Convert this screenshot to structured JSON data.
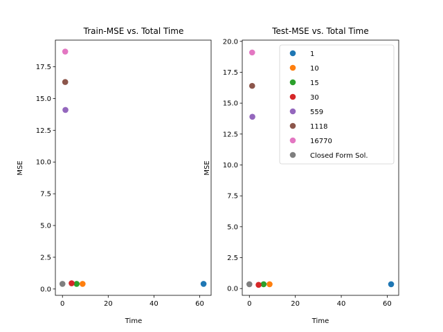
{
  "chart_data": [
    {
      "type": "scatter",
      "title": "Train-MSE vs. Total Time",
      "xlabel": "Time",
      "ylabel": "MSE",
      "xlim": [
        -3.1,
        65
      ],
      "ylim": [
        -0.5,
        19.6
      ],
      "xticks": [
        0,
        20,
        40,
        60
      ],
      "xtick_labels": [
        "0",
        "20",
        "40",
        "60"
      ],
      "yticks": [
        0,
        2.5,
        5,
        7.5,
        10,
        12.5,
        15,
        17.5
      ],
      "ytick_labels": [
        "0.0",
        "2.5",
        "5.0",
        "7.5",
        "10.0",
        "12.5",
        "15.0",
        "17.5"
      ],
      "series": [
        {
          "name": "1",
          "color": "#1f77b4",
          "x": [
            61.7
          ],
          "y": [
            0.4
          ]
        },
        {
          "name": "10",
          "color": "#ff7f0e",
          "x": [
            8.8
          ],
          "y": [
            0.4
          ]
        },
        {
          "name": "15",
          "color": "#2ca02c",
          "x": [
            6.2
          ],
          "y": [
            0.4
          ]
        },
        {
          "name": "30",
          "color": "#d62728",
          "x": [
            4.0
          ],
          "y": [
            0.45
          ]
        },
        {
          "name": "559",
          "color": "#9467bd",
          "x": [
            1.3
          ],
          "y": [
            14.1
          ]
        },
        {
          "name": "1118",
          "color": "#8c564b",
          "x": [
            1.2
          ],
          "y": [
            16.3
          ]
        },
        {
          "name": "16770",
          "color": "#e377c2",
          "x": [
            1.2
          ],
          "y": [
            18.7
          ]
        },
        {
          "name": "Closed Form Sol.",
          "color": "#7f7f7f",
          "x": [
            0.0
          ],
          "y": [
            0.4
          ]
        }
      ]
    },
    {
      "type": "scatter",
      "title": "Test-MSE vs. Total Time",
      "xlabel": "Time",
      "ylabel": "MSE",
      "xlim": [
        -3.1,
        65
      ],
      "ylim": [
        -0.55,
        20.1
      ],
      "xticks": [
        0,
        20,
        40,
        60
      ],
      "xtick_labels": [
        "0",
        "20",
        "40",
        "60"
      ],
      "yticks": [
        0,
        2.5,
        5,
        7.5,
        10,
        12.5,
        15,
        17.5,
        20
      ],
      "ytick_labels": [
        "0.0",
        "2.5",
        "5.0",
        "7.5",
        "10.0",
        "12.5",
        "15.0",
        "17.5",
        "20.0"
      ],
      "legend": "top-right",
      "series": [
        {
          "name": "1",
          "color": "#1f77b4",
          "x": [
            61.7
          ],
          "y": [
            0.35
          ]
        },
        {
          "name": "10",
          "color": "#ff7f0e",
          "x": [
            8.8
          ],
          "y": [
            0.35
          ]
        },
        {
          "name": "15",
          "color": "#2ca02c",
          "x": [
            6.2
          ],
          "y": [
            0.35
          ]
        },
        {
          "name": "30",
          "color": "#d62728",
          "x": [
            4.0
          ],
          "y": [
            0.3
          ]
        },
        {
          "name": "559",
          "color": "#9467bd",
          "x": [
            1.3
          ],
          "y": [
            13.9
          ]
        },
        {
          "name": "1118",
          "color": "#8c564b",
          "x": [
            1.2
          ],
          "y": [
            16.4
          ]
        },
        {
          "name": "16770",
          "color": "#e377c2",
          "x": [
            1.2
          ],
          "y": [
            19.1
          ]
        },
        {
          "name": "Closed Form Sol.",
          "color": "#7f7f7f",
          "x": [
            0.0
          ],
          "y": [
            0.35
          ]
        }
      ]
    }
  ]
}
